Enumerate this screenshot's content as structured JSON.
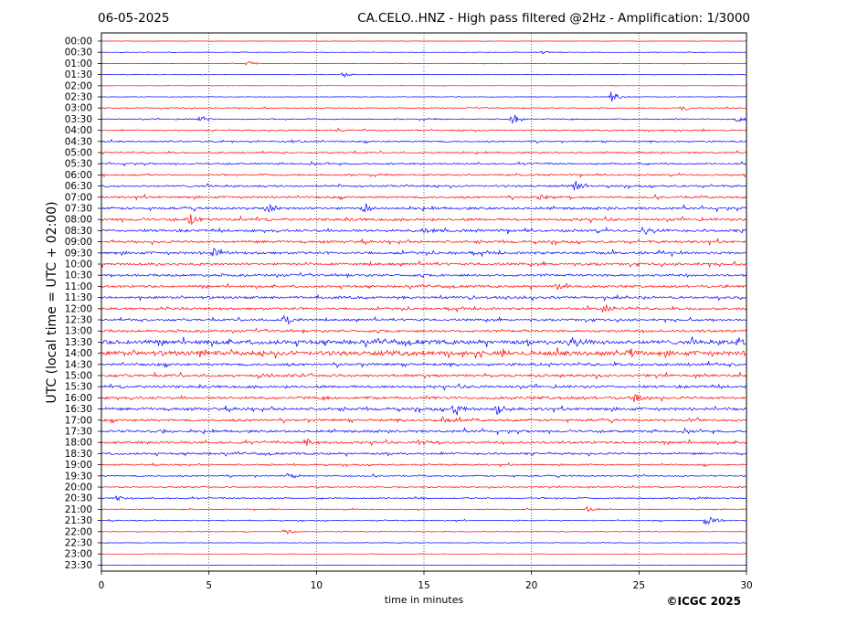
{
  "header": {
    "date": "06-05-2025",
    "title": "CA.CELO..HNZ - High pass filtered @2Hz - Amplification: 1/3000"
  },
  "footer": {
    "copyright": "©ICGC 2025"
  },
  "chart_data": {
    "type": "line",
    "title": "CA.CELO..HNZ - High pass filtered @2Hz - Amplification: 1/3000",
    "xlabel": "time in minutes",
    "ylabel": "UTC (local time = UTC + 02:00)",
    "xlim": [
      0,
      30
    ],
    "x_ticks": [
      "0",
      "5",
      "10",
      "15",
      "20",
      "25",
      "30"
    ],
    "x_tick_values": [
      0,
      5,
      10,
      15,
      20,
      25,
      30
    ],
    "row_labels": [
      "00:00",
      "00:30",
      "01:00",
      "01:30",
      "02:00",
      "02:30",
      "03:00",
      "03:30",
      "04:00",
      "04:30",
      "05:00",
      "05:30",
      "06:00",
      "06:30",
      "07:00",
      "07:30",
      "08:00",
      "08:30",
      "09:00",
      "09:30",
      "10:00",
      "10:30",
      "11:00",
      "11:30",
      "12:00",
      "12:30",
      "13:00",
      "13:30",
      "14:00",
      "14:30",
      "15:00",
      "15:30",
      "16:00",
      "16:30",
      "17:00",
      "17:30",
      "18:00",
      "18:30",
      "19:00",
      "19:30",
      "20:00",
      "20:30",
      "21:00",
      "21:30",
      "22:00",
      "22:30",
      "23:00",
      "23:30"
    ],
    "trace_colors": [
      "#ff0000",
      "#0000ff"
    ],
    "grid": "vertical dotted lines every 5 minutes",
    "noise_level": [
      0.2,
      0.3,
      0.3,
      0.3,
      0.2,
      0.3,
      0.6,
      0.7,
      0.8,
      0.9,
      0.9,
      1.0,
      1.0,
      1.2,
      1.3,
      1.5,
      1.6,
      1.6,
      1.5,
      1.6,
      1.5,
      1.4,
      1.4,
      1.5,
      1.4,
      1.3,
      1.4,
      2.6,
      2.8,
      1.6,
      1.6,
      1.6,
      1.7,
      1.7,
      1.5,
      1.5,
      1.4,
      1.3,
      0.9,
      0.9,
      0.7,
      0.8,
      0.6,
      0.6,
      0.4,
      0.3,
      0.2,
      0.2
    ],
    "events": [
      {
        "row": 1,
        "minute": 20.5,
        "amp": 2
      },
      {
        "row": 2,
        "minute": 6.8,
        "amp": 3
      },
      {
        "row": 3,
        "minute": 11.2,
        "amp": 4
      },
      {
        "row": 5,
        "minute": 23.7,
        "amp": 6
      },
      {
        "row": 6,
        "minute": 27.0,
        "amp": 4
      },
      {
        "row": 7,
        "minute": 4.6,
        "amp": 5
      },
      {
        "row": 7,
        "minute": 19.1,
        "amp": 7
      },
      {
        "row": 7,
        "minute": 29.5,
        "amp": 4
      },
      {
        "row": 8,
        "minute": 11.0,
        "amp": 3
      },
      {
        "row": 9,
        "minute": 8.8,
        "amp": 3
      },
      {
        "row": 13,
        "minute": 22.0,
        "amp": 6
      },
      {
        "row": 14,
        "minute": 20.4,
        "amp": 6
      },
      {
        "row": 15,
        "minute": 7.7,
        "amp": 7
      },
      {
        "row": 15,
        "minute": 12.2,
        "amp": 6
      },
      {
        "row": 16,
        "minute": 4.1,
        "amp": 7
      },
      {
        "row": 17,
        "minute": 15.0,
        "amp": 6
      },
      {
        "row": 17,
        "minute": 25.2,
        "amp": 6
      },
      {
        "row": 19,
        "minute": 5.2,
        "amp": 7
      },
      {
        "row": 22,
        "minute": 21.1,
        "amp": 6
      },
      {
        "row": 24,
        "minute": 23.4,
        "amp": 6
      },
      {
        "row": 25,
        "minute": 8.5,
        "amp": 10
      },
      {
        "row": 27,
        "minute": 21.8,
        "amp": 7
      },
      {
        "row": 27,
        "minute": 29.6,
        "amp": 7
      },
      {
        "row": 28,
        "minute": 4.6,
        "amp": 6
      },
      {
        "row": 28,
        "minute": 24.6,
        "amp": 6
      },
      {
        "row": 30,
        "minute": 7.2,
        "amp": 5
      },
      {
        "row": 32,
        "minute": 24.8,
        "amp": 6
      },
      {
        "row": 33,
        "minute": 16.4,
        "amp": 8
      },
      {
        "row": 33,
        "minute": 18.4,
        "amp": 7
      },
      {
        "row": 34,
        "minute": 15.8,
        "amp": 5
      },
      {
        "row": 35,
        "minute": 2.8,
        "amp": 5
      },
      {
        "row": 36,
        "minute": 14.7,
        "amp": 5
      },
      {
        "row": 36,
        "minute": 9.5,
        "amp": 5
      },
      {
        "row": 39,
        "minute": 8.7,
        "amp": 4
      },
      {
        "row": 41,
        "minute": 0.7,
        "amp": 4
      },
      {
        "row": 42,
        "minute": 22.6,
        "amp": 4
      },
      {
        "row": 43,
        "minute": 28.1,
        "amp": 10
      },
      {
        "row": 44,
        "minute": 8.5,
        "amp": 4
      }
    ]
  }
}
